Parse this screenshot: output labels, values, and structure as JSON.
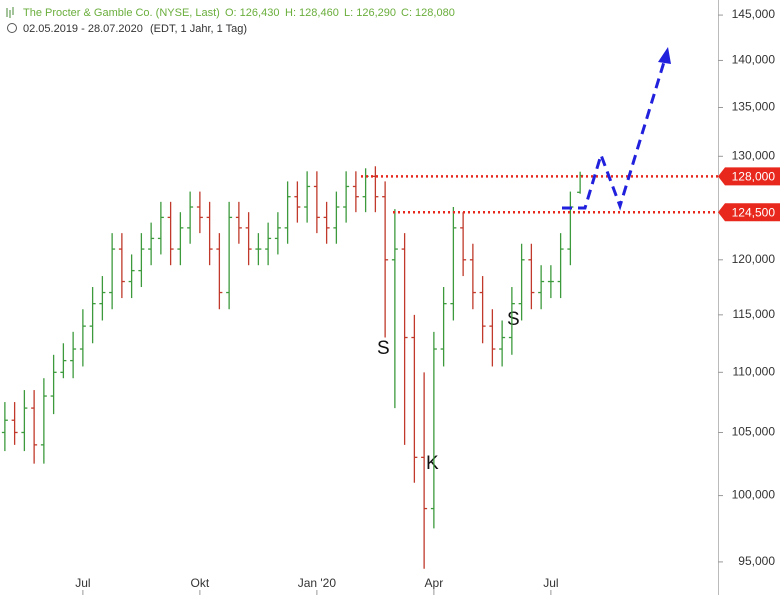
{
  "chart_data": {
    "type": "ohlc",
    "title": "The Procter & Gamble Co. (NYSE, Last)",
    "ohlc_labels": [
      "O: 126,430",
      "H: 128,460",
      "L: 126,290",
      "C: 128,080"
    ],
    "subtitle": "02.05.2019 - 28.07.2020",
    "note": "(EDT, 1 Jahr, 1 Tag)",
    "categories": [
      null,
      null,
      null,
      null,
      null,
      null,
      null,
      null,
      "Jul",
      null,
      null,
      null,
      null,
      null,
      null,
      null,
      null,
      null,
      null,
      null,
      "Okt",
      null,
      null,
      null,
      null,
      null,
      null,
      null,
      null,
      null,
      null,
      null,
      "Jan '20",
      null,
      null,
      null,
      null,
      null,
      null,
      null,
      null,
      null,
      null,
      null,
      "Apr",
      null,
      null,
      null,
      null,
      null,
      null,
      null,
      null,
      null,
      null,
      null,
      "Jul",
      null,
      null,
      null
    ],
    "open": [
      105000,
      106000,
      105000,
      107000,
      104000,
      108000,
      110000,
      111000,
      112000,
      114000,
      116000,
      117000,
      121000,
      118000,
      119000,
      121000,
      122000,
      124000,
      121000,
      123000,
      125000,
      124000,
      121000,
      117000,
      124000,
      123000,
      121000,
      121000,
      122000,
      123000,
      126000,
      125000,
      127000,
      124000,
      123000,
      125000,
      127000,
      126000,
      128000,
      126000,
      120000,
      121000,
      113000,
      103000,
      99000,
      112000,
      116000,
      123000,
      120000,
      117000,
      114000,
      112000,
      113000,
      116000,
      120000,
      117000,
      118000,
      118000,
      121000,
      126430
    ],
    "high": [
      107500,
      107500,
      108500,
      108500,
      109500,
      111500,
      112500,
      113500,
      115500,
      117500,
      118500,
      122500,
      122500,
      120500,
      122500,
      123500,
      125500,
      125500,
      124500,
      126500,
      126500,
      125500,
      122500,
      125500,
      125500,
      124500,
      122500,
      123500,
      124500,
      127500,
      127500,
      128500,
      128500,
      125500,
      126500,
      128500,
      128500,
      128800,
      129000,
      127500,
      124800,
      122500,
      115000,
      110000,
      113500,
      117500,
      125000,
      124500,
      121500,
      118500,
      115500,
      114500,
      117500,
      121500,
      121500,
      119500,
      119500,
      122500,
      126500,
      128460
    ],
    "low": [
      103500,
      104000,
      103500,
      102500,
      102500,
      106500,
      109500,
      109500,
      110500,
      112500,
      114500,
      115500,
      116500,
      116500,
      117500,
      119500,
      120500,
      119500,
      119500,
      121500,
      122500,
      119500,
      115500,
      115500,
      121500,
      119500,
      119500,
      119500,
      120500,
      121500,
      123500,
      123500,
      122500,
      121500,
      121500,
      123500,
      124500,
      124500,
      124500,
      113000,
      107000,
      104000,
      101000,
      94500,
      97500,
      110500,
      114500,
      118500,
      115500,
      112500,
      110500,
      110500,
      111500,
      114500,
      115500,
      115500,
      116500,
      116500,
      119500,
      126290
    ],
    "close": [
      106000,
      105000,
      107000,
      104000,
      108000,
      110000,
      111000,
      112000,
      114000,
      116000,
      117000,
      121000,
      118000,
      119000,
      121000,
      122000,
      124000,
      121000,
      123000,
      125000,
      124000,
      121000,
      117000,
      124000,
      123000,
      121000,
      121000,
      122000,
      123000,
      126000,
      125000,
      127000,
      124000,
      123000,
      125000,
      127000,
      126000,
      128000,
      126000,
      120000,
      121000,
      113000,
      103000,
      99000,
      112000,
      116000,
      123000,
      120000,
      117000,
      114000,
      112000,
      113000,
      116000,
      120000,
      117000,
      118000,
      118000,
      121000,
      125000,
      128080
    ],
    "up_color": "#3c9a3c",
    "down_color": "#c0392b",
    "ylim": [
      92600,
      146700
    ],
    "log_scale": true,
    "yticks": [
      {
        "value": 95000,
        "label": "95,000"
      },
      {
        "value": 100000,
        "label": "100,000"
      },
      {
        "value": 105000,
        "label": "105,000"
      },
      {
        "value": 110000,
        "label": "110,000"
      },
      {
        "value": 115000,
        "label": "115,000"
      },
      {
        "value": 120000,
        "label": "120,000"
      },
      {
        "value": 130000,
        "label": "130,000"
      },
      {
        "value": 135000,
        "label": "135,000"
      },
      {
        "value": 140000,
        "label": "140,000"
      },
      {
        "value": 145000,
        "label": "145,000"
      }
    ],
    "levels": [
      {
        "value": 128000,
        "label": "128,000"
      },
      {
        "value": 124500,
        "label": "124,500"
      }
    ],
    "level_color": "#e8281c",
    "annotations": [
      "S",
      "K",
      "S"
    ]
  }
}
